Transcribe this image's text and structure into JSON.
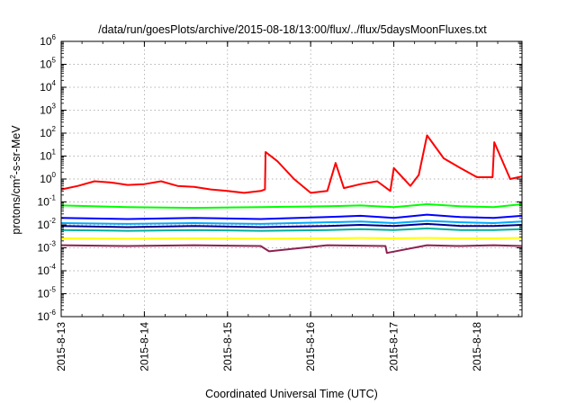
{
  "chart_data": {
    "type": "line",
    "title": "/data/run/goesPlots/archive/2015-08-18/13:00/flux/../flux/5daysMoonFluxes.txt",
    "xlabel": "Coordinated Universal Time (UTC)",
    "ylabel": {
      "prefix": "protons/cm",
      "sup": "2",
      "suffix": "-s-sr-MeV"
    },
    "y_scale": "log",
    "ylim": [
      1e-06,
      1000000.0
    ],
    "y_ticks": [
      {
        "value": 1e-06,
        "base": "10",
        "exp": "-6"
      },
      {
        "value": 1e-05,
        "base": "10",
        "exp": "-5"
      },
      {
        "value": 0.0001,
        "base": "10",
        "exp": "-4"
      },
      {
        "value": 0.001,
        "base": "10",
        "exp": "-3"
      },
      {
        "value": 0.01,
        "base": "10",
        "exp": "-2"
      },
      {
        "value": 0.1,
        "base": "10",
        "exp": "-1"
      },
      {
        "value": 1.0,
        "base": "10",
        "exp": "0"
      },
      {
        "value": 10.0,
        "base": "10",
        "exp": "1"
      },
      {
        "value": 100.0,
        "base": "10",
        "exp": "2"
      },
      {
        "value": 1000.0,
        "base": "10",
        "exp": "3"
      },
      {
        "value": 10000.0,
        "base": "10",
        "exp": "4"
      },
      {
        "value": 100000.0,
        "base": "10",
        "exp": "5"
      },
      {
        "value": 1000000.0,
        "base": "10",
        "exp": "6"
      }
    ],
    "x_ticks": [
      "2015-8-13",
      "2015-8-14",
      "2015-8-15",
      "2015-8-16",
      "2015-8-17",
      "2015-8-18"
    ],
    "xlim": [
      "2015-8-13 00:00",
      "2015-8-18 13:00"
    ],
    "grid": true,
    "series": [
      {
        "color": "#ff0000",
        "x": [
          "2015-8-13 00:00",
          "2015-8-13 04:48",
          "2015-8-13 09:36",
          "2015-8-13 14:24",
          "2015-8-13 19:12",
          "2015-8-14 00:00",
          "2015-8-14 04:48",
          "2015-8-14 09:36",
          "2015-8-14 14:24",
          "2015-8-14 19:12",
          "2015-8-15 00:00",
          "2015-8-15 04:48",
          "2015-8-15 09:36",
          "2015-8-15 10:48",
          "2015-8-15 11:00",
          "2015-8-15 14:24",
          "2015-8-15 19:12",
          "2015-8-16 00:00",
          "2015-8-16 04:48",
          "2015-8-16 07:12",
          "2015-8-16 09:36",
          "2015-8-16 14:24",
          "2015-8-16 19:12",
          "2015-8-16 23:00",
          "2015-8-17 00:00",
          "2015-8-17 04:48",
          "2015-8-17 07:12",
          "2015-8-17 09:36",
          "2015-8-17 14:24",
          "2015-8-17 19:12",
          "2015-8-18 00:00",
          "2015-8-18 04:30",
          "2015-8-18 05:00",
          "2015-8-18 09:36",
          "2015-8-18 13:00"
        ],
        "y": [
          0.35,
          0.5,
          0.8,
          0.7,
          0.55,
          0.6,
          0.8,
          0.5,
          0.45,
          0.35,
          0.3,
          0.25,
          0.3,
          0.35,
          15,
          6,
          1.0,
          0.25,
          0.3,
          5,
          0.4,
          0.6,
          0.8,
          0.3,
          3,
          0.5,
          1.5,
          80,
          8,
          3,
          1.2,
          1.2,
          40,
          1.0,
          1.3
        ]
      },
      {
        "color": "#00ff00",
        "x": [
          "2015-8-13 00:00",
          "2015-8-13 19:12",
          "2015-8-14 14:24",
          "2015-8-15 09:36",
          "2015-8-16 04:48",
          "2015-8-16 14:24",
          "2015-8-17 00:00",
          "2015-8-17 09:36",
          "2015-8-17 19:12",
          "2015-8-18 04:48",
          "2015-8-18 13:00"
        ],
        "y": [
          0.07,
          0.06,
          0.055,
          0.06,
          0.065,
          0.07,
          0.06,
          0.08,
          0.065,
          0.06,
          0.08
        ]
      },
      {
        "color": "#0000ff",
        "x": [
          "2015-8-13 00:00",
          "2015-8-13 19:12",
          "2015-8-14 14:24",
          "2015-8-15 09:36",
          "2015-8-16 04:48",
          "2015-8-16 14:24",
          "2015-8-17 00:00",
          "2015-8-17 09:36",
          "2015-8-17 19:12",
          "2015-8-18 04:48",
          "2015-8-18 13:00"
        ],
        "y": [
          0.02,
          0.018,
          0.02,
          0.018,
          0.022,
          0.025,
          0.02,
          0.028,
          0.022,
          0.02,
          0.025
        ]
      },
      {
        "color": "#00aaff",
        "x": [
          "2015-8-13 00:00",
          "2015-8-13 19:12",
          "2015-8-14 14:24",
          "2015-8-15 09:36",
          "2015-8-16 04:48",
          "2015-8-16 14:24",
          "2015-8-17 00:00",
          "2015-8-17 09:36",
          "2015-8-17 19:12",
          "2015-8-18 04:48",
          "2015-8-18 13:00"
        ],
        "y": [
          0.012,
          0.011,
          0.012,
          0.011,
          0.013,
          0.014,
          0.012,
          0.015,
          0.013,
          0.012,
          0.014
        ]
      },
      {
        "color": "#00008b",
        "x": [
          "2015-8-13 00:00",
          "2015-8-13 19:12",
          "2015-8-14 14:24",
          "2015-8-15 09:36",
          "2015-8-16 04:48",
          "2015-8-16 14:24",
          "2015-8-17 00:00",
          "2015-8-17 09:36",
          "2015-8-17 19:12",
          "2015-8-18 04:48",
          "2015-8-18 13:00"
        ],
        "y": [
          0.009,
          0.008,
          0.009,
          0.008,
          0.009,
          0.01,
          0.009,
          0.011,
          0.009,
          0.009,
          0.01
        ]
      },
      {
        "color": "#00b0a0",
        "x": [
          "2015-8-13 00:00",
          "2015-8-13 19:12",
          "2015-8-14 14:24",
          "2015-8-15 09:36",
          "2015-8-16 04:48",
          "2015-8-16 14:24",
          "2015-8-17 00:00",
          "2015-8-17 09:36",
          "2015-8-17 19:12",
          "2015-8-18 04:48",
          "2015-8-18 13:00"
        ],
        "y": [
          0.006,
          0.0055,
          0.006,
          0.0055,
          0.006,
          0.0065,
          0.006,
          0.007,
          0.006,
          0.006,
          0.0065
        ]
      },
      {
        "color": "#ffff00",
        "x": [
          "2015-8-13 00:00",
          "2015-8-13 19:12",
          "2015-8-14 14:24",
          "2015-8-15 09:36",
          "2015-8-16 04:48",
          "2015-8-16 14:24",
          "2015-8-17 00:00",
          "2015-8-17 09:36",
          "2015-8-17 19:12",
          "2015-8-18 04:48",
          "2015-8-18 13:00"
        ],
        "y": [
          0.0026,
          0.0025,
          0.0026,
          0.0025,
          0.0026,
          0.0027,
          0.0026,
          0.0027,
          0.0026,
          0.0026,
          0.0027
        ]
      },
      {
        "color": "#8b2252",
        "x": [
          "2015-8-13 00:00",
          "2015-8-13 19:12",
          "2015-8-14 14:24",
          "2015-8-15 09:36",
          "2015-8-15 12:00",
          "2015-8-16 04:48",
          "2015-8-16 21:36",
          "2015-8-16 22:00",
          "2015-8-17 09:36",
          "2015-8-17 19:12",
          "2015-8-18 04:48",
          "2015-8-18 13:00"
        ],
        "y": [
          0.0013,
          0.0012,
          0.0013,
          0.0012,
          0.0007,
          0.0013,
          0.0012,
          0.0006,
          0.0013,
          0.0012,
          0.0013,
          0.0012
        ]
      }
    ]
  }
}
